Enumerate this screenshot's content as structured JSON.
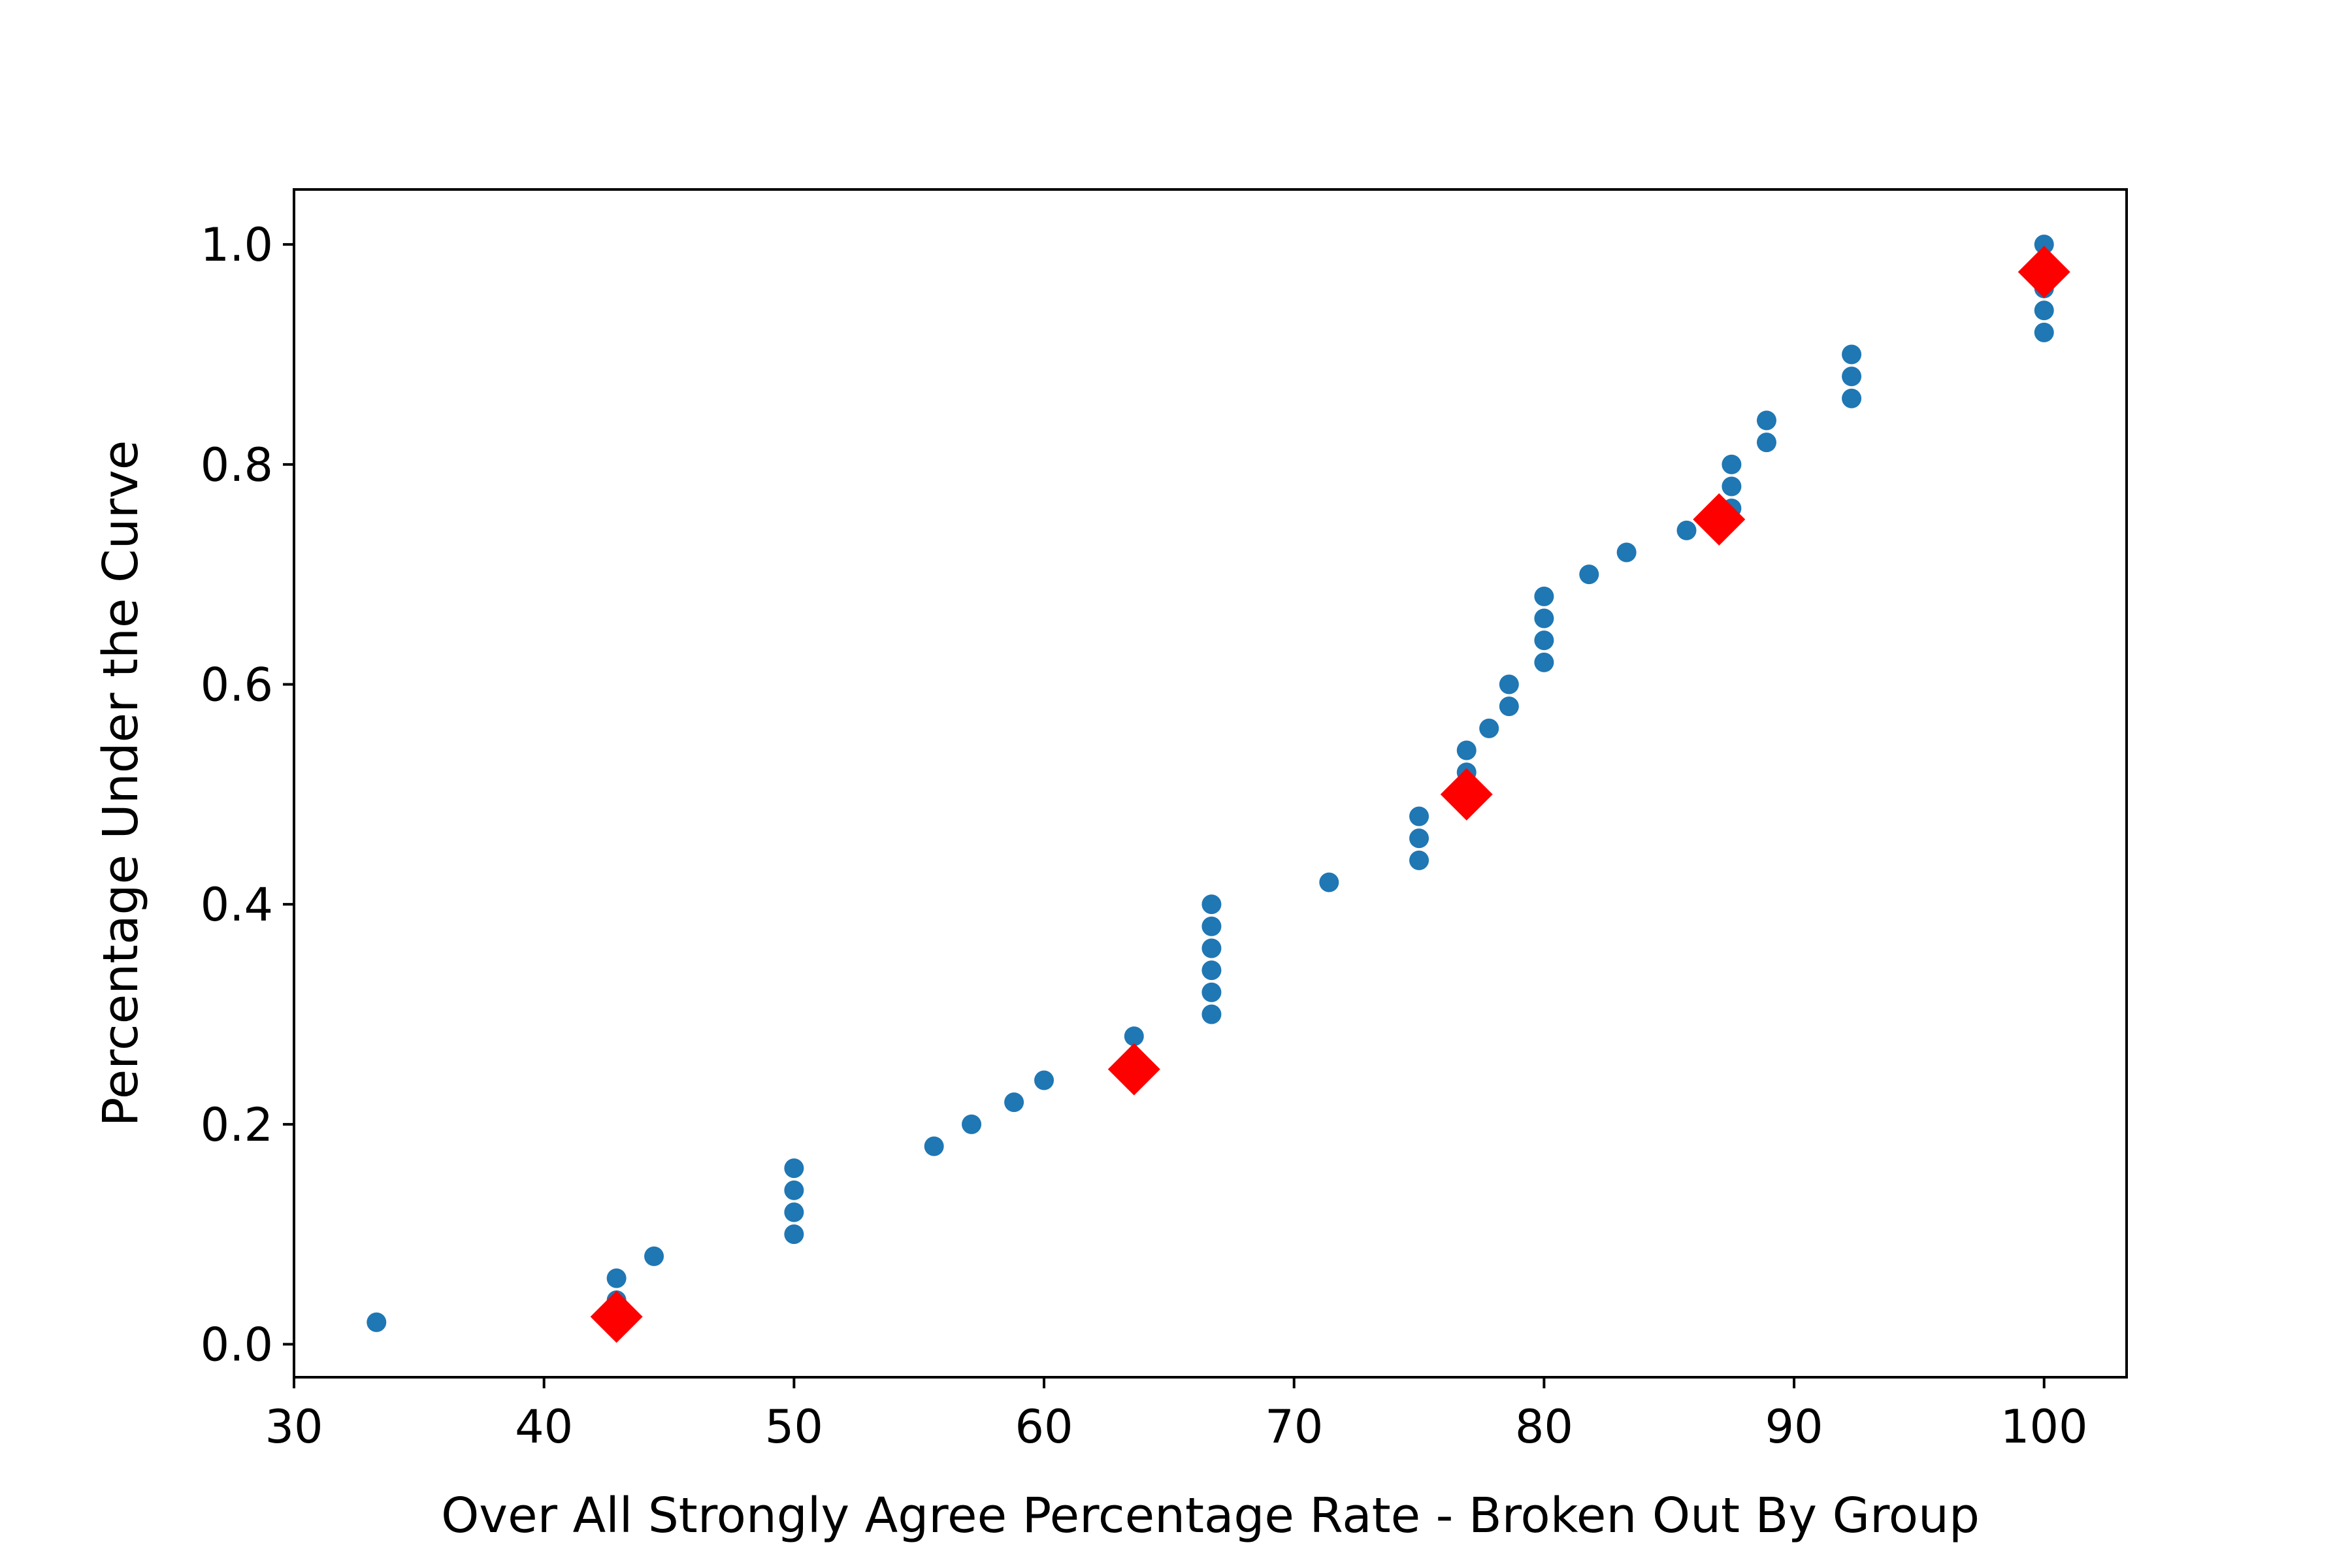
{
  "chart_data": {
    "type": "scatter",
    "title": "",
    "xlabel": "Over All Strongly Agree Percentage Rate - Broken Out By Group",
    "ylabel": "Percentage Under the Curve",
    "xlim": [
      30,
      103.3
    ],
    "ylim": [
      -0.03,
      1.05
    ],
    "xticks": [
      30,
      40,
      50,
      60,
      70,
      80,
      90,
      100
    ],
    "yticks": [
      0.0,
      0.2,
      0.4,
      0.6,
      0.8,
      1.0
    ],
    "xtick_labels": [
      "30",
      "40",
      "50",
      "60",
      "70",
      "80",
      "90",
      "100"
    ],
    "ytick_labels": [
      "0.0",
      "0.2",
      "0.4",
      "0.6",
      "0.8",
      "1.0"
    ],
    "grid": false,
    "legend": "none",
    "series": [
      {
        "marker": "circle",
        "color": "#1f77b4",
        "points": [
          [
            33.3,
            0.02
          ],
          [
            42.9,
            0.04
          ],
          [
            42.9,
            0.06
          ],
          [
            44.4,
            0.08
          ],
          [
            50.0,
            0.1
          ],
          [
            50.0,
            0.12
          ],
          [
            50.0,
            0.14
          ],
          [
            50.0,
            0.16
          ],
          [
            55.6,
            0.18
          ],
          [
            57.1,
            0.2
          ],
          [
            58.8,
            0.22
          ],
          [
            60.0,
            0.24
          ],
          [
            63.6,
            0.26
          ],
          [
            63.6,
            0.28
          ],
          [
            66.7,
            0.3
          ],
          [
            66.7,
            0.32
          ],
          [
            66.7,
            0.34
          ],
          [
            66.7,
            0.36
          ],
          [
            66.7,
            0.38
          ],
          [
            66.7,
            0.4
          ],
          [
            71.4,
            0.42
          ],
          [
            75.0,
            0.44
          ],
          [
            75.0,
            0.46
          ],
          [
            75.0,
            0.48
          ],
          [
            76.9,
            0.5
          ],
          [
            76.9,
            0.52
          ],
          [
            76.9,
            0.54
          ],
          [
            77.8,
            0.56
          ],
          [
            78.6,
            0.58
          ],
          [
            78.6,
            0.6
          ],
          [
            80.0,
            0.62
          ],
          [
            80.0,
            0.64
          ],
          [
            80.0,
            0.66
          ],
          [
            80.0,
            0.68
          ],
          [
            81.8,
            0.7
          ],
          [
            83.3,
            0.72
          ],
          [
            85.7,
            0.74
          ],
          [
            87.5,
            0.76
          ],
          [
            87.5,
            0.78
          ],
          [
            87.5,
            0.8
          ],
          [
            88.9,
            0.82
          ],
          [
            88.9,
            0.84
          ],
          [
            92.3,
            0.86
          ],
          [
            92.3,
            0.88
          ],
          [
            92.3,
            0.9
          ],
          [
            100.0,
            0.92
          ],
          [
            100.0,
            0.94
          ],
          [
            100.0,
            0.96
          ],
          [
            100.0,
            0.98
          ],
          [
            100.0,
            1.0
          ]
        ]
      },
      {
        "marker": "diamond",
        "color": "#ff0000",
        "points": [
          [
            42.9,
            0.025
          ],
          [
            63.6,
            0.25
          ],
          [
            76.9,
            0.5
          ],
          [
            87.0,
            0.75
          ],
          [
            100.0,
            0.975
          ]
        ]
      }
    ]
  }
}
